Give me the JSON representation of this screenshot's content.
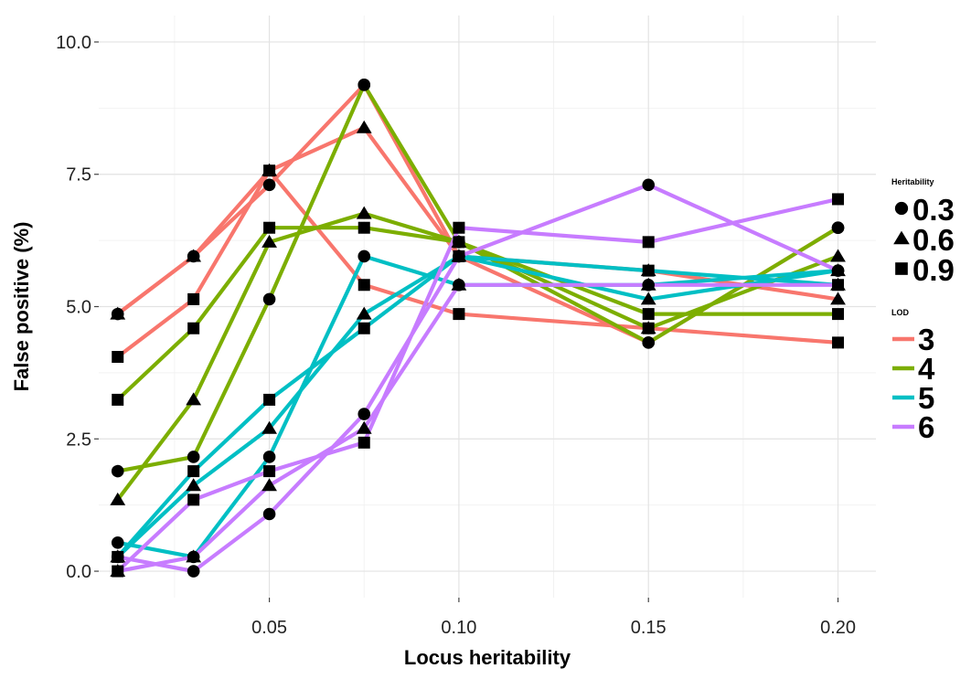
{
  "chart_data": {
    "type": "line",
    "title": "",
    "xlabel": "Locus heritability",
    "ylabel": "False positive (%)",
    "x": [
      0.01,
      0.03,
      0.05,
      0.075,
      0.1,
      0.15,
      0.2
    ],
    "xlim": [
      0.005,
      0.21
    ],
    "ylim": [
      -0.5,
      10.5
    ],
    "x_ticks": [
      0.05,
      0.1,
      0.15,
      0.2
    ],
    "x_tick_labels": [
      "0.05",
      "0.10",
      "0.15",
      "0.20"
    ],
    "y_ticks": [
      0.0,
      2.5,
      5.0,
      7.5,
      10.0
    ],
    "y_tick_labels": [
      "0.0",
      "2.5",
      "5.0",
      "7.5",
      "10.0"
    ],
    "grid": true,
    "legend_position": "right",
    "legends": {
      "shape": {
        "title": "Heritability",
        "entries": [
          {
            "label": "0.3",
            "shape": "circle"
          },
          {
            "label": "0.6",
            "shape": "triangle"
          },
          {
            "label": "0.9",
            "shape": "square"
          }
        ]
      },
      "color": {
        "title": "LOD",
        "entries": [
          {
            "label": "3",
            "color": "#F8766D"
          },
          {
            "label": "4",
            "color": "#7CAE00"
          },
          {
            "label": "5",
            "color": "#00BFC4"
          },
          {
            "label": "6",
            "color": "#C77CFF"
          }
        ]
      }
    },
    "series": [
      {
        "lod": "3",
        "heritability": "0.3",
        "color": "#F8766D",
        "shape": "circle",
        "values": [
          4.86,
          5.95,
          7.3,
          9.19,
          5.95,
          4.32,
          6.49
        ]
      },
      {
        "lod": "3",
        "heritability": "0.6",
        "color": "#F8766D",
        "shape": "triangle",
        "values": [
          4.86,
          5.95,
          7.57,
          8.38,
          5.95,
          5.68,
          5.14
        ]
      },
      {
        "lod": "3",
        "heritability": "0.9",
        "color": "#F8766D",
        "shape": "square",
        "values": [
          4.05,
          5.14,
          7.57,
          5.41,
          4.86,
          4.59,
          4.32
        ]
      },
      {
        "lod": "4",
        "heritability": "0.3",
        "color": "#7CAE00",
        "shape": "circle",
        "values": [
          1.89,
          2.16,
          5.14,
          9.19,
          6.22,
          4.32,
          6.49
        ]
      },
      {
        "lod": "4",
        "heritability": "0.6",
        "color": "#7CAE00",
        "shape": "triangle",
        "values": [
          1.35,
          3.24,
          6.22,
          6.76,
          6.22,
          4.59,
          5.95
        ]
      },
      {
        "lod": "4",
        "heritability": "0.9",
        "color": "#7CAE00",
        "shape": "square",
        "values": [
          3.24,
          4.59,
          6.49,
          6.49,
          6.22,
          4.86,
          4.86
        ]
      },
      {
        "lod": "5",
        "heritability": "0.3",
        "color": "#00BFC4",
        "shape": "circle",
        "values": [
          0.54,
          0.27,
          2.16,
          5.95,
          5.41,
          5.41,
          5.68
        ]
      },
      {
        "lod": "5",
        "heritability": "0.6",
        "color": "#00BFC4",
        "shape": "triangle",
        "values": [
          0.27,
          1.62,
          2.7,
          4.86,
          5.95,
          5.14,
          5.68
        ]
      },
      {
        "lod": "5",
        "heritability": "0.9",
        "color": "#00BFC4",
        "shape": "square",
        "values": [
          0.27,
          1.89,
          3.24,
          4.59,
          5.95,
          5.68,
          5.41
        ]
      },
      {
        "lod": "6",
        "heritability": "0.3",
        "color": "#C77CFF",
        "shape": "circle",
        "values": [
          0.27,
          0.0,
          1.08,
          2.97,
          5.95,
          7.3,
          5.68
        ]
      },
      {
        "lod": "6",
        "heritability": "0.6",
        "color": "#C77CFF",
        "shape": "triangle",
        "values": [
          0.0,
          0.27,
          1.62,
          2.7,
          5.41,
          5.41,
          5.41
        ]
      },
      {
        "lod": "6",
        "heritability": "0.9",
        "color": "#C77CFF",
        "shape": "square",
        "values": [
          0.0,
          1.35,
          1.89,
          2.43,
          6.49,
          6.22,
          7.03
        ]
      }
    ]
  }
}
